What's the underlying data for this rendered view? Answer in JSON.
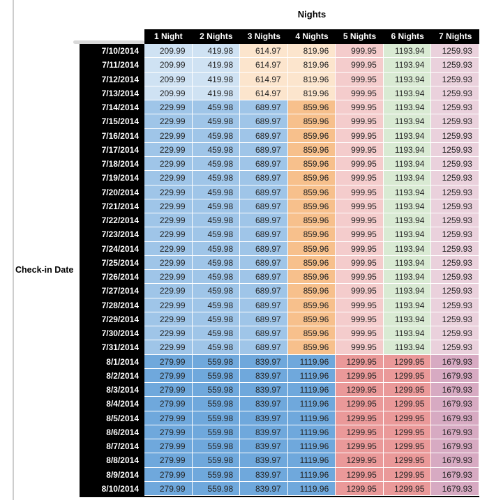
{
  "labels": {
    "title": "Nights",
    "row_axis": "Check-in Date"
  },
  "palette": {
    "header_bg": "#000000",
    "header_text": "#ffffff",
    "pane_line": "#cdcdcd",
    "corner_strip": "#d9d9d9",
    "cell_text": "#222222",
    "light_blue": "#cfe2f3",
    "light_orange": "#fce5cd",
    "light_red": "#f4cccc",
    "light_green": "#d9ead3",
    "light_mauve": "#ead1dc",
    "mid_blue": "#9fc5e8",
    "mid_orange": "#f7c08c",
    "dark_blue": "#6fa8dc",
    "red": "#ea9999",
    "mauve": "#d7aac2"
  },
  "table": {
    "columns": [
      "1 Night",
      "2 Nights",
      "3 Nights",
      "4 Nights",
      "5 Nights",
      "6 Nights",
      "7 Nights"
    ],
    "tiers": [
      {
        "dates": [
          "7/10/2014",
          "7/11/2014",
          "7/12/2014",
          "7/13/2014"
        ],
        "values": [
          "209.99",
          "419.98",
          "614.97",
          "819.96",
          "999.95",
          "1193.94",
          "1259.93"
        ],
        "colors": [
          "light_blue",
          "light_blue",
          "light_orange",
          "light_orange",
          "light_red",
          "light_green",
          "light_mauve"
        ]
      },
      {
        "dates": [
          "7/14/2014",
          "7/15/2014",
          "7/16/2014",
          "7/17/2014",
          "7/18/2014",
          "7/19/2014",
          "7/20/2014",
          "7/21/2014",
          "7/22/2014",
          "7/23/2014",
          "7/24/2014",
          "7/25/2014",
          "7/26/2014",
          "7/27/2014",
          "7/28/2014",
          "7/29/2014",
          "7/30/2014",
          "7/31/2014"
        ],
        "values": [
          "229.99",
          "459.98",
          "689.97",
          "859.96",
          "999.95",
          "1193.94",
          "1259.93"
        ],
        "colors": [
          "mid_blue",
          "mid_blue",
          "mid_blue",
          "mid_orange",
          "light_red",
          "light_green",
          "light_mauve"
        ]
      },
      {
        "dates": [
          "8/1/2014",
          "8/2/2014",
          "8/3/2014",
          "8/4/2014",
          "8/5/2014",
          "8/6/2014",
          "8/7/2014",
          "8/8/2014",
          "8/9/2014",
          "8/10/2014"
        ],
        "values": [
          "279.99",
          "559.98",
          "839.97",
          "1119.96",
          "1299.95",
          "1299.95",
          "1679.93"
        ],
        "colors": [
          "dark_blue",
          "dark_blue",
          "dark_blue",
          "dark_blue",
          "red",
          "red",
          "mauve"
        ]
      }
    ]
  }
}
